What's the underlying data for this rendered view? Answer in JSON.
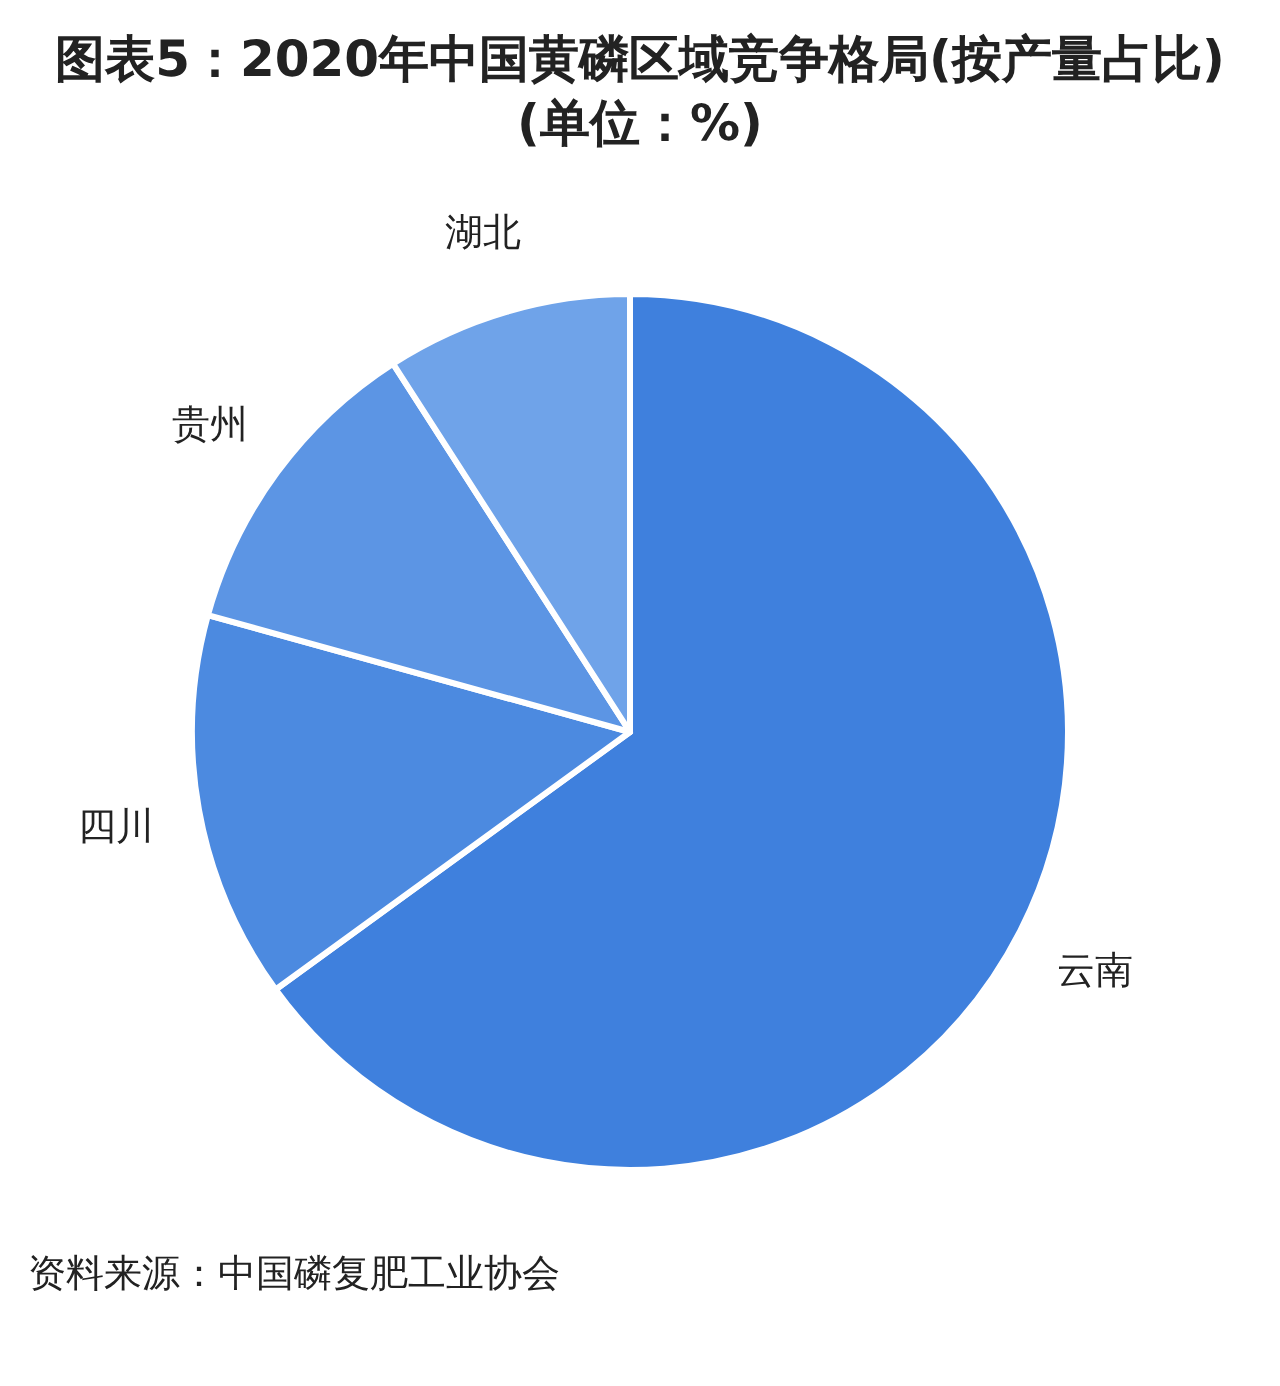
{
  "chart_data": {
    "type": "pie",
    "title": "图表5：2020年中国黄磷区域竞争格局(按产量占比)(单位：%)",
    "categories": [
      "云南",
      "四川",
      "贵州",
      "湖北"
    ],
    "values": [
      65,
      14.3,
      11.6,
      9.1
    ],
    "colors": [
      "#3f80dd",
      "#4c8ae0",
      "#5c95e4",
      "#6fa3e9"
    ],
    "annotations": [
      "资料来源：中国磷复肥工业协会"
    ]
  }
}
